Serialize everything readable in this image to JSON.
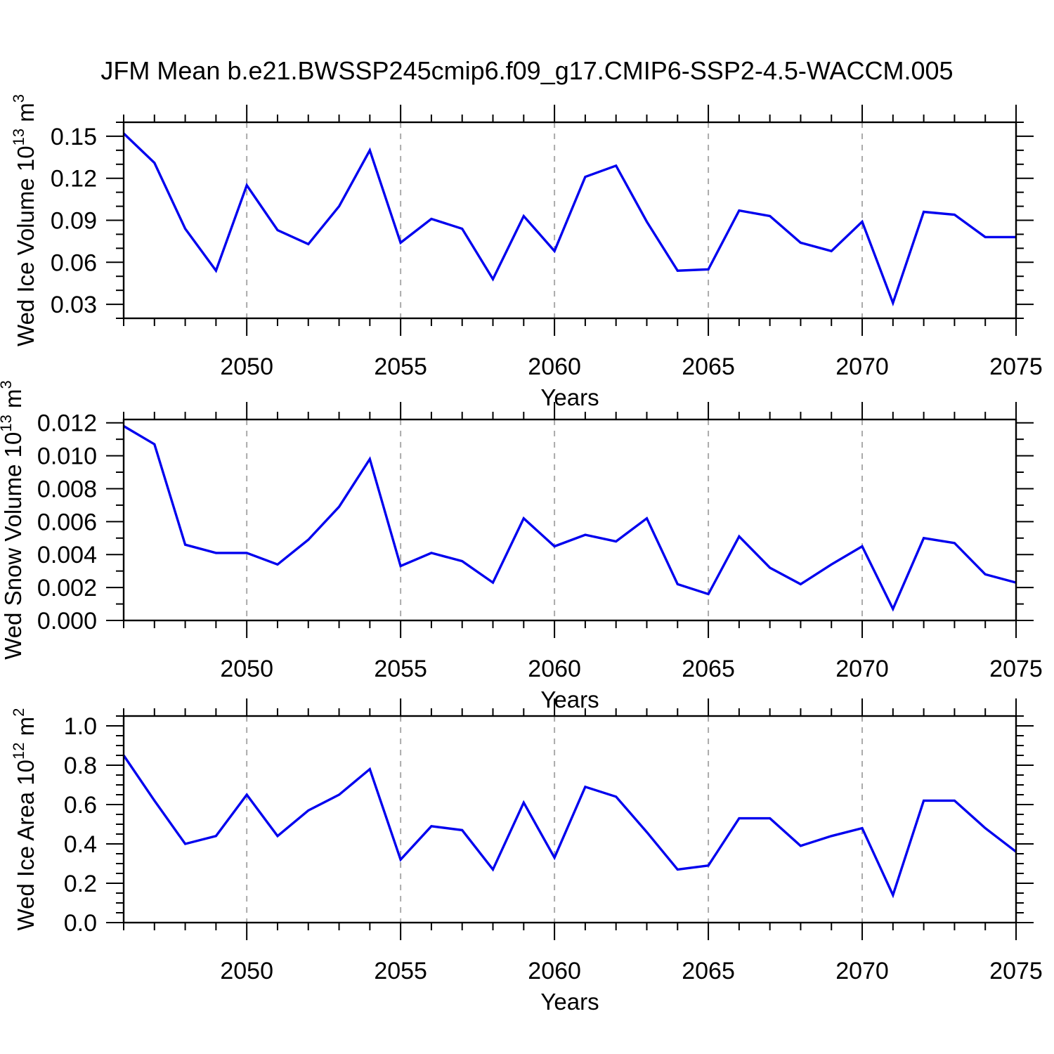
{
  "title": "JFM Mean b.e21.BWSSP245cmip6.f09_g17.CMIP6-SSP2-4.5-WACCM.005",
  "colors": {
    "line": "#0000ee",
    "grid": "#aaaaaa",
    "axis": "#000000",
    "background": "#ffffff"
  },
  "chart_data": [
    {
      "type": "line",
      "name": "ice-volume",
      "ylabel": "Wed Ice Volume 10¹³ m³",
      "ylabel_parts": [
        {
          "t": "Wed Ice Volume 10"
        },
        {
          "t": "13",
          "sup": true
        },
        {
          "t": " m"
        },
        {
          "t": "3",
          "sup": true
        }
      ],
      "xlabel": "Years",
      "x": [
        2046,
        2047,
        2048,
        2049,
        2050,
        2051,
        2052,
        2053,
        2054,
        2055,
        2056,
        2057,
        2058,
        2059,
        2060,
        2061,
        2062,
        2063,
        2064,
        2065,
        2066,
        2067,
        2068,
        2069,
        2070,
        2071,
        2072,
        2073,
        2074,
        2075
      ],
      "values": [
        0.152,
        0.131,
        0.084,
        0.054,
        0.115,
        0.083,
        0.073,
        0.1,
        0.14,
        0.074,
        0.091,
        0.084,
        0.048,
        0.093,
        0.068,
        0.121,
        0.129,
        0.089,
        0.054,
        0.055,
        0.097,
        0.093,
        0.074,
        0.068,
        0.089,
        0.031,
        0.096,
        0.094,
        0.078,
        0.078
      ],
      "xlim": [
        2046,
        2075
      ],
      "ylim": [
        0.02,
        0.16
      ],
      "xticks": [
        2050,
        2055,
        2060,
        2065,
        2070,
        2075
      ],
      "xtick_labels": [
        "2050",
        "2055",
        "2060",
        "2065",
        "2070",
        "2075"
      ],
      "x_minor_step": 1,
      "yticks": [
        0.03,
        0.06,
        0.09,
        0.12,
        0.15
      ],
      "ytick_labels": [
        "0.03",
        "0.06",
        "0.09",
        "0.12",
        "0.15"
      ],
      "y_minor_step": 0.01,
      "grid_x": [
        2050,
        2055,
        2060,
        2065,
        2070
      ],
      "grid_style": "dashed-vertical"
    },
    {
      "type": "line",
      "name": "snow-volume",
      "ylabel": "Wed Snow Volume 10¹³ m³",
      "ylabel_parts": [
        {
          "t": "Wed Snow Volume 10"
        },
        {
          "t": "13",
          "sup": true
        },
        {
          "t": " m"
        },
        {
          "t": "3",
          "sup": true
        }
      ],
      "xlabel": "Years",
      "x": [
        2046,
        2047,
        2048,
        2049,
        2050,
        2051,
        2052,
        2053,
        2054,
        2055,
        2056,
        2057,
        2058,
        2059,
        2060,
        2061,
        2062,
        2063,
        2064,
        2065,
        2066,
        2067,
        2068,
        2069,
        2070,
        2071,
        2072,
        2073,
        2074,
        2075
      ],
      "values": [
        0.0118,
        0.0107,
        0.0046,
        0.0041,
        0.0041,
        0.0034,
        0.0049,
        0.0069,
        0.0098,
        0.0033,
        0.0041,
        0.0036,
        0.0023,
        0.0062,
        0.0045,
        0.0052,
        0.0048,
        0.0062,
        0.0022,
        0.0016,
        0.0051,
        0.0032,
        0.0022,
        0.0034,
        0.0045,
        0.0007,
        0.005,
        0.0047,
        0.0028,
        0.0023
      ],
      "xlim": [
        2046,
        2075
      ],
      "ylim": [
        0,
        0.0122
      ],
      "xticks": [
        2050,
        2055,
        2060,
        2065,
        2070,
        2075
      ],
      "xtick_labels": [
        "2050",
        "2055",
        "2060",
        "2065",
        "2070",
        "2075"
      ],
      "x_minor_step": 1,
      "yticks": [
        0.0,
        0.002,
        0.004,
        0.006,
        0.008,
        0.01,
        0.012
      ],
      "ytick_labels": [
        "0.000",
        "0.002",
        "0.004",
        "0.006",
        "0.008",
        "0.010",
        "0.012"
      ],
      "y_minor_step": 0.001,
      "grid_x": [
        2050,
        2055,
        2060,
        2065,
        2070
      ],
      "grid_style": "dashed-vertical"
    },
    {
      "type": "line",
      "name": "ice-area",
      "ylabel": "Wed Ice Area 10¹² m²",
      "ylabel_parts": [
        {
          "t": "Wed Ice Area 10"
        },
        {
          "t": "12",
          "sup": true
        },
        {
          "t": " m"
        },
        {
          "t": "2",
          "sup": true
        }
      ],
      "xlabel": "Years",
      "x": [
        2046,
        2047,
        2048,
        2049,
        2050,
        2051,
        2052,
        2053,
        2054,
        2055,
        2056,
        2057,
        2058,
        2059,
        2060,
        2061,
        2062,
        2063,
        2064,
        2065,
        2066,
        2067,
        2068,
        2069,
        2070,
        2071,
        2072,
        2073,
        2074,
        2075
      ],
      "values": [
        0.85,
        0.62,
        0.4,
        0.44,
        0.65,
        0.44,
        0.57,
        0.65,
        0.78,
        0.32,
        0.49,
        0.47,
        0.27,
        0.61,
        0.33,
        0.69,
        0.64,
        0.46,
        0.27,
        0.29,
        0.53,
        0.53,
        0.39,
        0.44,
        0.48,
        0.14,
        0.62,
        0.62,
        0.48,
        0.36
      ],
      "xlim": [
        2046,
        2075
      ],
      "ylim": [
        0,
        1.05
      ],
      "xticks": [
        2050,
        2055,
        2060,
        2065,
        2070,
        2075
      ],
      "xtick_labels": [
        "2050",
        "2055",
        "2060",
        "2065",
        "2070",
        "2075"
      ],
      "x_minor_step": 1,
      "yticks": [
        0.0,
        0.2,
        0.4,
        0.6,
        0.8,
        1.0
      ],
      "ytick_labels": [
        "0.0",
        "0.2",
        "0.4",
        "0.6",
        "0.8",
        "1.0"
      ],
      "y_minor_step": 0.05,
      "grid_x": [
        2050,
        2055,
        2060,
        2065,
        2070
      ],
      "grid_style": "dashed-vertical"
    }
  ]
}
